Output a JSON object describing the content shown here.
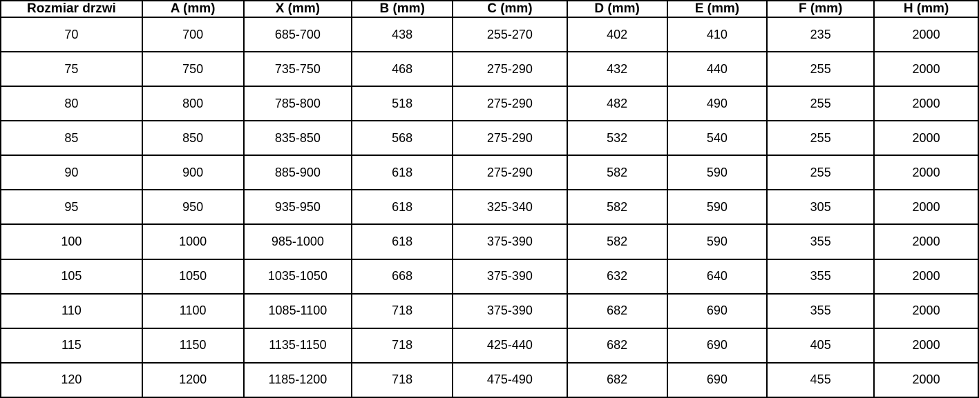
{
  "table": {
    "title": "door-size-dimensions-table",
    "columns": [
      "Rozmiar drzwi",
      "A (mm)",
      "X (mm)",
      "B (mm)",
      "C (mm)",
      "D (mm)",
      "E (mm)",
      "F (mm)",
      "H (mm)"
    ],
    "rows": [
      [
        "70",
        "700",
        "685-700",
        "438",
        "255-270",
        "402",
        "410",
        "235",
        "2000"
      ],
      [
        "75",
        "750",
        "735-750",
        "468",
        "275-290",
        "432",
        "440",
        "255",
        "2000"
      ],
      [
        "80",
        "800",
        "785-800",
        "518",
        "275-290",
        "482",
        "490",
        "255",
        "2000"
      ],
      [
        "85",
        "850",
        "835-850",
        "568",
        "275-290",
        "532",
        "540",
        "255",
        "2000"
      ],
      [
        "90",
        "900",
        "885-900",
        "618",
        "275-290",
        "582",
        "590",
        "255",
        "2000"
      ],
      [
        "95",
        "950",
        "935-950",
        "618",
        "325-340",
        "582",
        "590",
        "305",
        "2000"
      ],
      [
        "100",
        "1000",
        "985-1000",
        "618",
        "375-390",
        "582",
        "590",
        "355",
        "2000"
      ],
      [
        "105",
        "1050",
        "1035-1050",
        "668",
        "375-390",
        "632",
        "640",
        "355",
        "2000"
      ],
      [
        "110",
        "1100",
        "1085-1100",
        "718",
        "375-390",
        "682",
        "690",
        "355",
        "2000"
      ],
      [
        "115",
        "1150",
        "1135-1150",
        "718",
        "425-440",
        "682",
        "690",
        "405",
        "2000"
      ],
      [
        "120",
        "1200",
        "1185-1200",
        "718",
        "475-490",
        "682",
        "690",
        "455",
        "2000"
      ]
    ],
    "colors": {
      "border": "#000000",
      "text": "#000000",
      "background": "#ffffff"
    }
  }
}
